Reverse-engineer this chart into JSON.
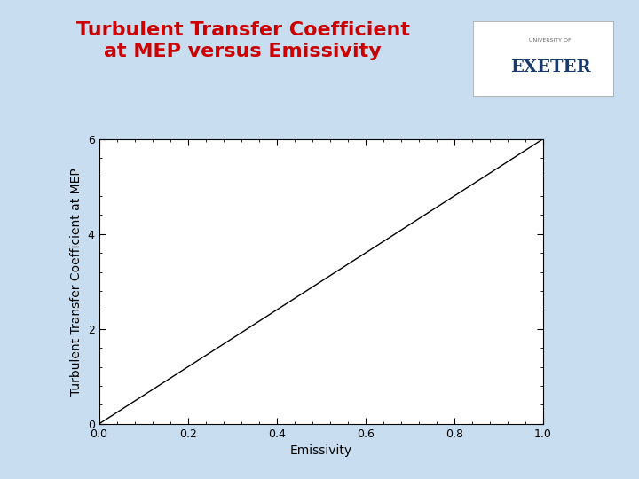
{
  "title_line1": "Turbulent Transfer Coefficient",
  "title_line2": "at MEP versus Emissivity",
  "title_color": "#cc0000",
  "title_fontsize": 16,
  "xlabel": "Emissivity",
  "ylabel": "Turbulent Transfer Coefficient at MEP",
  "xlim": [
    0.0,
    1.0
  ],
  "ylim": [
    0.0,
    6.0
  ],
  "xticks": [
    0.0,
    0.2,
    0.4,
    0.6,
    0.8,
    1.0
  ],
  "yticks": [
    0,
    2,
    4,
    6
  ],
  "background_color": "#c8ddf0",
  "plot_bg_color": "#ffffff",
  "line_color": "#000000",
  "line_width": 1.0,
  "axis_label_fontsize": 10,
  "tick_fontsize": 9,
  "exponent": 1.0
}
